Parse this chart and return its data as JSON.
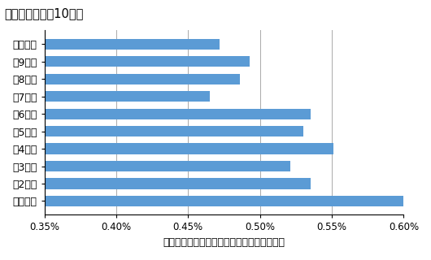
{
  "categories": [
    "最高分位",
    "第9分位",
    "第8分位",
    "第7分位",
    "第6分位",
    "第5分位",
    "第4分位",
    "第3分位",
    "第2分位",
    "最低分位"
  ],
  "values": [
    0.00472,
    0.00493,
    0.00486,
    0.00465,
    0.00535,
    0.0053,
    0.00551,
    0.00521,
    0.00535,
    0.00601
  ],
  "bar_color": "#5B9BD5",
  "title": "税引前家計所得10分位",
  "xlabel": "関税負担の対家計支出比（住居費等を除く）",
  "xlim": [
    0.0035,
    0.006
  ],
  "xticks": [
    0.0035,
    0.004,
    0.0045,
    0.005,
    0.0055,
    0.006
  ],
  "xtick_labels": [
    "0.35%",
    "0.40%",
    "0.45%",
    "0.50%",
    "0.55%",
    "0.60%"
  ],
  "title_fontsize": 10.5,
  "xlabel_fontsize": 9,
  "tick_fontsize": 8.5,
  "label_fontsize": 9,
  "bar_height": 0.62
}
